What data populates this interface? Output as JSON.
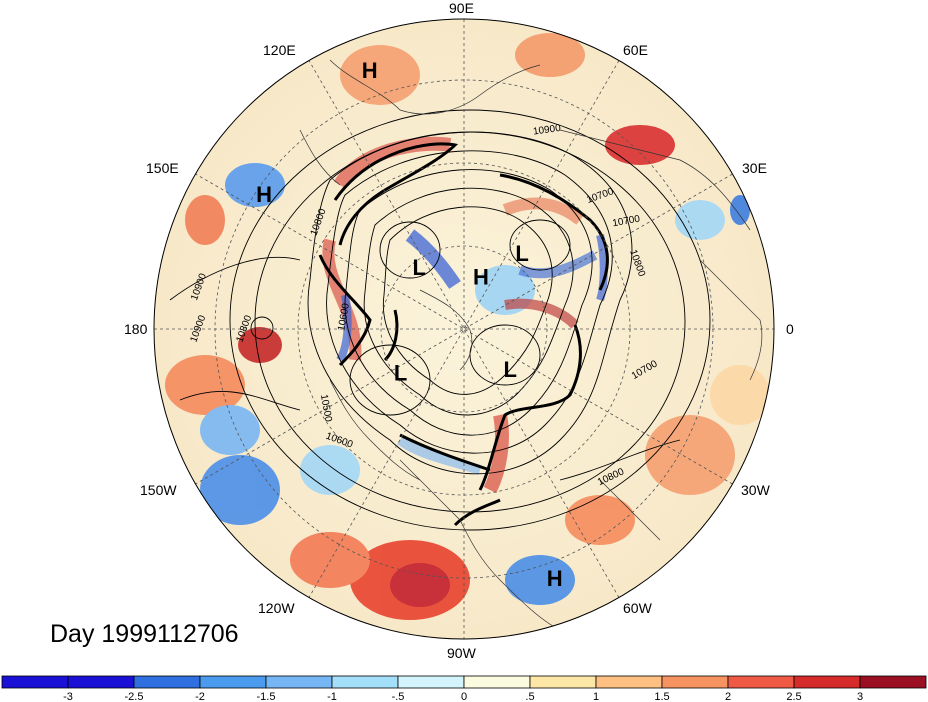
{
  "title": "Day 1999112706",
  "longitude_labels": [
    "90E",
    "60E",
    "30E",
    "0",
    "30W",
    "60W",
    "90W",
    "120W",
    "150W",
    "180",
    "150E",
    "120E"
  ],
  "pressure_centers": [
    {
      "type": "H",
      "lon": 110,
      "lat": 10
    },
    {
      "type": "H",
      "lon": 146,
      "lat": 20
    },
    {
      "type": "L",
      "lon": 125,
      "lat": 68
    },
    {
      "type": "H",
      "lon": 72,
      "lat": 74
    },
    {
      "type": "L",
      "lon": 52,
      "lat": 62
    },
    {
      "type": "L",
      "lon": -40,
      "lat": 72
    },
    {
      "type": "L",
      "lon": -145,
      "lat": 68
    },
    {
      "type": "H",
      "lon": -70,
      "lat": 13
    }
  ],
  "contour_labels": [
    "10900",
    "10900",
    "10800",
    "10800",
    "10700",
    "10700",
    "10600",
    "10600",
    "10500",
    "10800",
    "10800",
    "10900",
    "10700"
  ],
  "colorbar": {
    "ticks": [
      "-3",
      "-2.5",
      "-2",
      "-1.5",
      "-1",
      "-.5",
      "0",
      ".5",
      "1",
      "1.5",
      "2",
      "2.5",
      "3"
    ],
    "colors": [
      "#1a10d6",
      "#2f6fe0",
      "#4a9aee",
      "#77b6f4",
      "#a3dff9",
      "#d3f4fb",
      "#fbfbe0",
      "#fde7a6",
      "#fdc082",
      "#f59460",
      "#ef5a45",
      "#d62b2b",
      "#b5122a"
    ]
  }
}
